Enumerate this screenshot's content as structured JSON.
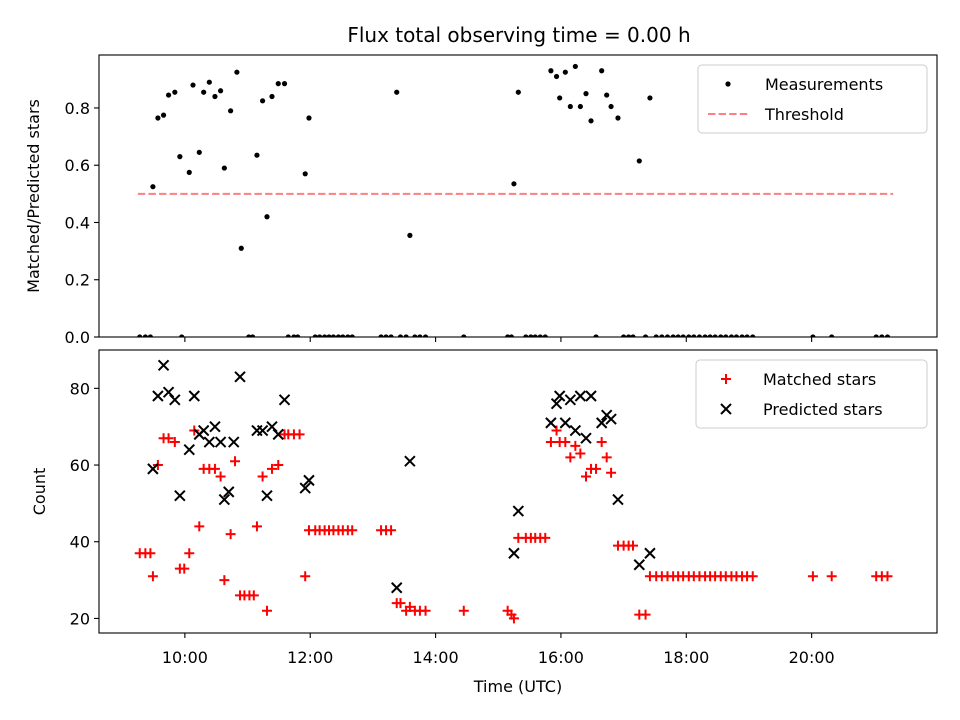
{
  "chart_data": [
    {
      "type": "scatter",
      "title": "Flux total observing time = 0.00 h",
      "ylabel": "Matched/Predicted stars",
      "xlabel": "",
      "xlim": [
        8.63,
        22.0
      ],
      "ylim": [
        0.0,
        0.985
      ],
      "yticks": [
        0.0,
        0.2,
        0.4,
        0.6,
        0.8
      ],
      "ytick_labels": [
        "0.0",
        "0.2",
        "0.4",
        "0.6",
        "0.8"
      ],
      "legend": {
        "position": "top-right",
        "entries": [
          "Measurements",
          "Threshold"
        ]
      },
      "threshold": {
        "name": "Threshold",
        "value": 0.5,
        "x_range": [
          9.25,
          21.3
        ],
        "color": "#ff7f7f"
      },
      "series": [
        {
          "name": "Measurements",
          "color": "#000000",
          "points": [
            [
              9.28,
              0
            ],
            [
              9.37,
              0
            ],
            [
              9.45,
              0
            ],
            [
              9.49,
              0.525
            ],
            [
              9.57,
              0.765
            ],
            [
              9.66,
              0.775
            ],
            [
              9.74,
              0.845
            ],
            [
              9.84,
              0.855
            ],
            [
              9.92,
              0.63
            ],
            [
              9.95,
              0
            ],
            [
              10.07,
              0.575
            ],
            [
              10.13,
              0.88
            ],
            [
              10.23,
              0.645
            ],
            [
              10.3,
              0.855
            ],
            [
              10.39,
              0.89
            ],
            [
              10.48,
              0.84
            ],
            [
              10.57,
              0.86
            ],
            [
              10.63,
              0.59
            ],
            [
              10.73,
              0.79
            ],
            [
              10.83,
              0.925
            ],
            [
              10.9,
              0.31
            ],
            [
              11.02,
              0
            ],
            [
              11.08,
              0
            ],
            [
              11.15,
              0.635
            ],
            [
              11.24,
              0.825
            ],
            [
              11.31,
              0.42
            ],
            [
              11.39,
              0.84
            ],
            [
              11.49,
              0.885
            ],
            [
              11.59,
              0.885
            ],
            [
              11.65,
              0
            ],
            [
              11.74,
              0
            ],
            [
              11.8,
              0
            ],
            [
              11.92,
              0.57
            ],
            [
              11.98,
              0.765
            ],
            [
              12.08,
              0
            ],
            [
              12.15,
              0
            ],
            [
              12.23,
              0
            ],
            [
              12.3,
              0
            ],
            [
              12.37,
              0
            ],
            [
              12.45,
              0
            ],
            [
              12.52,
              0
            ],
            [
              12.6,
              0
            ],
            [
              12.67,
              0
            ],
            [
              13.13,
              0
            ],
            [
              13.21,
              0
            ],
            [
              13.29,
              0
            ],
            [
              13.38,
              0.855
            ],
            [
              13.44,
              0
            ],
            [
              13.53,
              0
            ],
            [
              13.59,
              0.355
            ],
            [
              13.67,
              0
            ],
            [
              13.75,
              0
            ],
            [
              13.84,
              0
            ],
            [
              14.45,
              0
            ],
            [
              15.15,
              0
            ],
            [
              15.21,
              0
            ],
            [
              15.25,
              0.535
            ],
            [
              15.32,
              0.855
            ],
            [
              15.44,
              0
            ],
            [
              15.52,
              0
            ],
            [
              15.59,
              0
            ],
            [
              15.67,
              0
            ],
            [
              15.75,
              0
            ],
            [
              15.84,
              0.93
            ],
            [
              15.93,
              0.91
            ],
            [
              15.98,
              0.835
            ],
            [
              16.07,
              0.925
            ],
            [
              16.15,
              0.805
            ],
            [
              16.23,
              0.945
            ],
            [
              16.31,
              0.805
            ],
            [
              16.4,
              0.85
            ],
            [
              16.48,
              0.755
            ],
            [
              16.56,
              0
            ],
            [
              16.65,
              0.93
            ],
            [
              16.73,
              0.845
            ],
            [
              16.8,
              0.805
            ],
            [
              16.91,
              0.765
            ],
            [
              17.0,
              0
            ],
            [
              17.08,
              0
            ],
            [
              17.15,
              0
            ],
            [
              17.25,
              0.615
            ],
            [
              17.35,
              0
            ],
            [
              17.42,
              0.835
            ],
            [
              17.52,
              0
            ],
            [
              17.61,
              0
            ],
            [
              17.7,
              0
            ],
            [
              17.79,
              0
            ],
            [
              17.87,
              0
            ],
            [
              17.95,
              0
            ],
            [
              18.04,
              0
            ],
            [
              18.12,
              0
            ],
            [
              18.21,
              0
            ],
            [
              18.3,
              0
            ],
            [
              18.38,
              0
            ],
            [
              18.46,
              0
            ],
            [
              18.55,
              0
            ],
            [
              18.63,
              0
            ],
            [
              18.72,
              0
            ],
            [
              18.8,
              0
            ],
            [
              18.89,
              0
            ],
            [
              18.97,
              0
            ],
            [
              19.06,
              0
            ],
            [
              20.02,
              0
            ],
            [
              20.32,
              0
            ],
            [
              21.03,
              0
            ],
            [
              21.12,
              0
            ],
            [
              21.21,
              0
            ]
          ]
        }
      ]
    },
    {
      "type": "scatter",
      "title": "",
      "ylabel": "Count",
      "xlabel": "Time (UTC)",
      "xlim": [
        8.63,
        22.0
      ],
      "ylim": [
        16.2,
        90
      ],
      "yticks": [
        20,
        40,
        60,
        80
      ],
      "ytick_labels": [
        "20",
        "40",
        "60",
        "80"
      ],
      "xticks": [
        10,
        12,
        14,
        16,
        18,
        20
      ],
      "xtick_labels": [
        "10:00",
        "12:00",
        "14:00",
        "16:00",
        "18:00",
        "20:00"
      ],
      "legend": {
        "position": "top-right",
        "entries": [
          "Matched stars",
          "Predicted stars"
        ]
      },
      "series": [
        {
          "name": "Matched stars",
          "marker": "plus",
          "color": "#ff0000",
          "points": [
            [
              9.28,
              37
            ],
            [
              9.37,
              37
            ],
            [
              9.45,
              37
            ],
            [
              9.49,
              31
            ],
            [
              9.57,
              60
            ],
            [
              9.66,
              67
            ],
            [
              9.74,
              67
            ],
            [
              9.84,
              66
            ],
            [
              9.92,
              33
            ],
            [
              9.99,
              33
            ],
            [
              10.07,
              37
            ],
            [
              10.15,
              69
            ],
            [
              10.23,
              44
            ],
            [
              10.3,
              59
            ],
            [
              10.39,
              59
            ],
            [
              10.48,
              59
            ],
            [
              10.57,
              57
            ],
            [
              10.63,
              30
            ],
            [
              10.73,
              42
            ],
            [
              10.8,
              61
            ],
            [
              10.88,
              26
            ],
            [
              10.95,
              26
            ],
            [
              11.03,
              26
            ],
            [
              11.1,
              26
            ],
            [
              11.15,
              44
            ],
            [
              11.24,
              57
            ],
            [
              11.31,
              22
            ],
            [
              11.39,
              59
            ],
            [
              11.49,
              60
            ],
            [
              11.59,
              68
            ],
            [
              11.65,
              68
            ],
            [
              11.74,
              68
            ],
            [
              11.83,
              68
            ],
            [
              11.92,
              31
            ],
            [
              11.98,
              43
            ],
            [
              12.08,
              43
            ],
            [
              12.15,
              43
            ],
            [
              12.23,
              43
            ],
            [
              12.3,
              43
            ],
            [
              12.37,
              43
            ],
            [
              12.45,
              43
            ],
            [
              12.52,
              43
            ],
            [
              12.6,
              43
            ],
            [
              12.67,
              43
            ],
            [
              13.13,
              43
            ],
            [
              13.21,
              43
            ],
            [
              13.29,
              43
            ],
            [
              13.38,
              24
            ],
            [
              13.44,
              24
            ],
            [
              13.53,
              22
            ],
            [
              13.59,
              23
            ],
            [
              13.67,
              22
            ],
            [
              13.75,
              22
            ],
            [
              13.84,
              22
            ],
            [
              14.45,
              22
            ],
            [
              15.15,
              22
            ],
            [
              15.21,
              21
            ],
            [
              15.25,
              20
            ],
            [
              15.32,
              41
            ],
            [
              15.44,
              41
            ],
            [
              15.52,
              41
            ],
            [
              15.59,
              41
            ],
            [
              15.67,
              41
            ],
            [
              15.75,
              41
            ],
            [
              15.84,
              66
            ],
            [
              15.93,
              69
            ],
            [
              15.98,
              66
            ],
            [
              16.07,
              66
            ],
            [
              16.15,
              62
            ],
            [
              16.23,
              65
            ],
            [
              16.31,
              63
            ],
            [
              16.4,
              57
            ],
            [
              16.48,
              59
            ],
            [
              16.56,
              59
            ],
            [
              16.65,
              66
            ],
            [
              16.73,
              62
            ],
            [
              16.8,
              58
            ],
            [
              16.91,
              39
            ],
            [
              17.0,
              39
            ],
            [
              17.08,
              39
            ],
            [
              17.15,
              39
            ],
            [
              17.25,
              21
            ],
            [
              17.35,
              21
            ],
            [
              17.42,
              31
            ],
            [
              17.52,
              31
            ],
            [
              17.61,
              31
            ],
            [
              17.7,
              31
            ],
            [
              17.79,
              31
            ],
            [
              17.87,
              31
            ],
            [
              17.95,
              31
            ],
            [
              18.04,
              31
            ],
            [
              18.12,
              31
            ],
            [
              18.21,
              31
            ],
            [
              18.3,
              31
            ],
            [
              18.38,
              31
            ],
            [
              18.46,
              31
            ],
            [
              18.55,
              31
            ],
            [
              18.63,
              31
            ],
            [
              18.72,
              31
            ],
            [
              18.8,
              31
            ],
            [
              18.89,
              31
            ],
            [
              18.97,
              31
            ],
            [
              19.06,
              31
            ],
            [
              20.02,
              31
            ],
            [
              20.32,
              31
            ],
            [
              21.03,
              31
            ],
            [
              21.12,
              31
            ],
            [
              21.21,
              31
            ]
          ]
        },
        {
          "name": "Predicted stars",
          "marker": "x",
          "color": "#000000",
          "points": [
            [
              9.49,
              59
            ],
            [
              9.57,
              78
            ],
            [
              9.66,
              86
            ],
            [
              9.74,
              79
            ],
            [
              9.84,
              77
            ],
            [
              9.92,
              52
            ],
            [
              10.07,
              64
            ],
            [
              10.15,
              78
            ],
            [
              10.23,
              68
            ],
            [
              10.3,
              69
            ],
            [
              10.39,
              66
            ],
            [
              10.48,
              70
            ],
            [
              10.57,
              66
            ],
            [
              10.63,
              51
            ],
            [
              10.7,
              53
            ],
            [
              10.78,
              66
            ],
            [
              10.88,
              83
            ],
            [
              11.15,
              69
            ],
            [
              11.24,
              69
            ],
            [
              11.31,
              52
            ],
            [
              11.39,
              70
            ],
            [
              11.49,
              68
            ],
            [
              11.59,
              77
            ],
            [
              11.92,
              54
            ],
            [
              11.98,
              56
            ],
            [
              13.38,
              28
            ],
            [
              13.59,
              61
            ],
            [
              15.25,
              37
            ],
            [
              15.32,
              48
            ],
            [
              15.84,
              71
            ],
            [
              15.93,
              76
            ],
            [
              15.98,
              78
            ],
            [
              16.07,
              71
            ],
            [
              16.15,
              77
            ],
            [
              16.23,
              69
            ],
            [
              16.31,
              78
            ],
            [
              16.4,
              67
            ],
            [
              16.48,
              78
            ],
            [
              16.65,
              71
            ],
            [
              16.73,
              73
            ],
            [
              16.8,
              72
            ],
            [
              16.91,
              51
            ],
            [
              17.25,
              34
            ],
            [
              17.42,
              37
            ]
          ]
        }
      ]
    }
  ]
}
